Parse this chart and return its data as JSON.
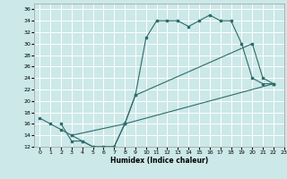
{
  "xlabel": "Humidex (Indice chaleur)",
  "bg_color": "#cce8e8",
  "grid_color": "#ffffff",
  "line_color": "#2e6b6b",
  "ylim": [
    12,
    37
  ],
  "xlim": [
    -0.5,
    23
  ],
  "yticks": [
    12,
    14,
    16,
    18,
    20,
    22,
    24,
    26,
    28,
    30,
    32,
    34,
    36
  ],
  "xticks": [
    0,
    1,
    2,
    3,
    4,
    5,
    6,
    7,
    8,
    9,
    10,
    11,
    12,
    13,
    14,
    15,
    16,
    17,
    18,
    19,
    20,
    21,
    22,
    23
  ],
  "series": [
    {
      "x": [
        0,
        1,
        2,
        3,
        4,
        5,
        6,
        7,
        8,
        9,
        10,
        11,
        12,
        13,
        14,
        15,
        16,
        17,
        18,
        19,
        20,
        21,
        22
      ],
      "y": [
        17,
        16,
        15,
        14,
        13,
        12,
        12,
        12,
        16,
        21,
        31,
        34,
        34,
        34,
        33,
        34,
        35,
        34,
        34,
        30,
        24,
        23,
        23
      ]
    },
    {
      "x": [
        3,
        8,
        9,
        20,
        21,
        22
      ],
      "y": [
        14,
        16,
        21,
        30,
        24,
        23
      ]
    },
    {
      "x": [
        2,
        3,
        4,
        5,
        6,
        7,
        8,
        22
      ],
      "y": [
        16,
        13,
        13,
        12,
        12,
        12,
        16,
        23
      ]
    }
  ]
}
